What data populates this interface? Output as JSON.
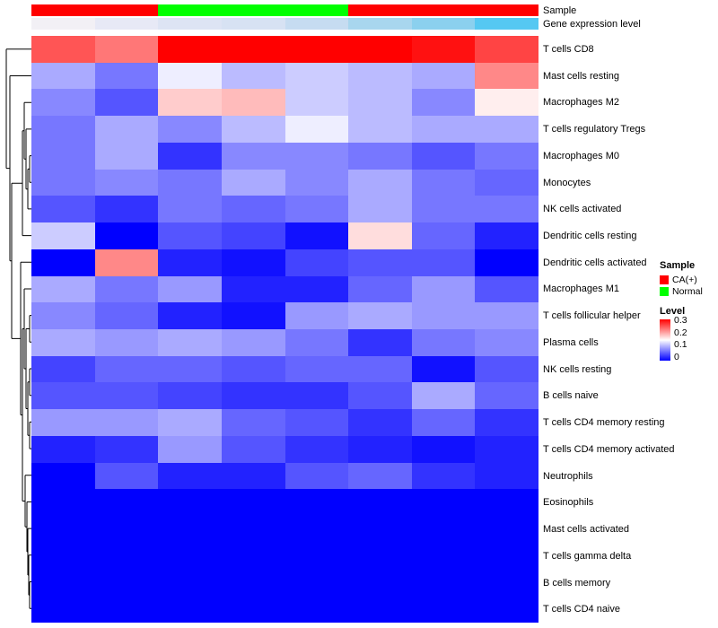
{
  "chart_data": {
    "type": "heatmap",
    "n_columns": 8,
    "colormap": {
      "min": 0,
      "mid": 0.15,
      "max": 0.3,
      "low": "#0000ff",
      "mid_color": "#ffffff",
      "high": "#ff0000"
    },
    "rows": [
      {
        "label": "T cells CD8",
        "values": [
          0.25,
          0.23,
          0.3,
          0.3,
          0.3,
          0.3,
          0.29,
          0.26
        ]
      },
      {
        "label": "Mast cells resting",
        "values": [
          0.1,
          0.07,
          0.14,
          0.11,
          0.12,
          0.11,
          0.1,
          0.22
        ]
      },
      {
        "label": "Macrophages M2",
        "values": [
          0.08,
          0.05,
          0.18,
          0.19,
          0.12,
          0.11,
          0.08,
          0.16
        ]
      },
      {
        "label": "T cells regulatory  Tregs",
        "values": [
          0.07,
          0.1,
          0.08,
          0.11,
          0.14,
          0.11,
          0.1,
          0.1
        ]
      },
      {
        "label": "Macrophages M0",
        "values": [
          0.07,
          0.1,
          0.03,
          0.08,
          0.08,
          0.07,
          0.05,
          0.07
        ]
      },
      {
        "label": "Monocytes",
        "values": [
          0.07,
          0.08,
          0.07,
          0.1,
          0.08,
          0.1,
          0.07,
          0.06
        ]
      },
      {
        "label": "NK cells activated",
        "values": [
          0.05,
          0.03,
          0.07,
          0.06,
          0.07,
          0.1,
          0.07,
          0.07
        ]
      },
      {
        "label": "Dendritic cells resting",
        "values": [
          0.12,
          0.0,
          0.05,
          0.04,
          0.01,
          0.17,
          0.06,
          0.02
        ]
      },
      {
        "label": "Dendritic cells activated",
        "values": [
          0.0,
          0.22,
          0.02,
          0.01,
          0.04,
          0.05,
          0.05,
          0.0
        ]
      },
      {
        "label": "Macrophages M1",
        "values": [
          0.1,
          0.07,
          0.09,
          0.02,
          0.02,
          0.06,
          0.09,
          0.05
        ]
      },
      {
        "label": "T cells follicular helper",
        "values": [
          0.08,
          0.06,
          0.02,
          0.01,
          0.09,
          0.1,
          0.09,
          0.09
        ]
      },
      {
        "label": "Plasma cells",
        "values": [
          0.1,
          0.09,
          0.1,
          0.09,
          0.07,
          0.03,
          0.07,
          0.08
        ]
      },
      {
        "label": "NK cells resting",
        "values": [
          0.04,
          0.06,
          0.06,
          0.05,
          0.06,
          0.06,
          0.01,
          0.05
        ]
      },
      {
        "label": "B cells naive",
        "values": [
          0.05,
          0.05,
          0.04,
          0.03,
          0.03,
          0.05,
          0.1,
          0.06
        ]
      },
      {
        "label": "T cells CD4 memory resting",
        "values": [
          0.09,
          0.09,
          0.1,
          0.06,
          0.05,
          0.03,
          0.06,
          0.03
        ]
      },
      {
        "label": "T cells CD4 memory activated",
        "values": [
          0.02,
          0.03,
          0.09,
          0.05,
          0.03,
          0.02,
          0.01,
          0.02
        ]
      },
      {
        "label": "Neutrophils",
        "values": [
          0.0,
          0.05,
          0.02,
          0.02,
          0.05,
          0.06,
          0.03,
          0.02
        ]
      },
      {
        "label": "Eosinophils",
        "values": [
          0,
          0,
          0,
          0,
          0,
          0,
          0,
          0
        ]
      },
      {
        "label": "Mast cells activated",
        "values": [
          0,
          0,
          0,
          0,
          0,
          0,
          0,
          0
        ]
      },
      {
        "label": "T cells gamma delta",
        "values": [
          0,
          0,
          0,
          0,
          0,
          0,
          0,
          0
        ]
      },
      {
        "label": "B cells memory",
        "values": [
          0,
          0,
          0,
          0,
          0,
          0,
          0,
          0
        ]
      },
      {
        "label": "T cells CD4 naive",
        "values": [
          0,
          0,
          0,
          0,
          0,
          0,
          0,
          0
        ]
      }
    ],
    "column_annotations": {
      "sample": {
        "label": "Sample",
        "values": [
          "CA(+)",
          "CA(+)",
          "Normal",
          "Normal",
          "Normal",
          "CA(+)",
          "CA(+)",
          "CA(+)"
        ],
        "colors": {
          "CA(+)": "#ff0000",
          "Normal": "#00ff00"
        }
      },
      "gene_expression": {
        "label": "Gene expression level",
        "colors": [
          "#f2f0f5",
          "#e7e9f6",
          "#dde4f4",
          "#d7e2f3",
          "#c6dcf1",
          "#a8d6ee",
          "#8bd0ee",
          "#55c8f2"
        ]
      }
    },
    "legend": {
      "sample": {
        "title": "Sample",
        "items": [
          {
            "label": "CA(+)",
            "color": "#ff0000"
          },
          {
            "label": "Normal",
            "color": "#00ff00"
          }
        ]
      },
      "level": {
        "title": "Level",
        "ticks": [
          "0.3",
          "0.2",
          "0.1",
          "0"
        ]
      }
    },
    "dendrogram_segments": [
      [
        34,
        608.5,
        32,
        608.5
      ],
      [
        34,
        638.2,
        32,
        638.2
      ],
      [
        32,
        608.5,
        32,
        638.2
      ],
      [
        32,
        623.3,
        31,
        623.3
      ],
      [
        34,
        578.8,
        31,
        578.8
      ],
      [
        31,
        578.8,
        31,
        623.3
      ],
      [
        31,
        601.0,
        30,
        601.0
      ],
      [
        34,
        549.1,
        30,
        549.1
      ],
      [
        30,
        549.1,
        30,
        601.0
      ],
      [
        30,
        575.0,
        29,
        575.0
      ],
      [
        34,
        519.4,
        29,
        519.4
      ],
      [
        29,
        519.4,
        29,
        575.0
      ],
      [
        29,
        547.2,
        27,
        547.2
      ],
      [
        34,
        489.7,
        27,
        489.7
      ],
      [
        27,
        489.7,
        27,
        547.2
      ],
      [
        34,
        430.4,
        32,
        430.4
      ],
      [
        34,
        460.1,
        32,
        460.1
      ],
      [
        32,
        430.4,
        32,
        460.1
      ],
      [
        34,
        371.0,
        32,
        371.0
      ],
      [
        34,
        400.7,
        32,
        400.7
      ],
      [
        32,
        371.0,
        32,
        400.7
      ],
      [
        32,
        385.8,
        30,
        385.8
      ],
      [
        32,
        445.2,
        30,
        445.2
      ],
      [
        30,
        385.8,
        30,
        445.2
      ],
      [
        34,
        311.6,
        32,
        311.6
      ],
      [
        34,
        341.3,
        32,
        341.3
      ],
      [
        32,
        311.6,
        32,
        341.3
      ],
      [
        32,
        326.5,
        28,
        326.5
      ],
      [
        30,
        415.5,
        28,
        415.5
      ],
      [
        28,
        326.5,
        28,
        415.5
      ],
      [
        34,
        282.0,
        26,
        282.0
      ],
      [
        28,
        371.0,
        26,
        371.0
      ],
      [
        26,
        282.0,
        26,
        371.0
      ],
      [
        26,
        326.5,
        24,
        326.5
      ],
      [
        27,
        518.5,
        24,
        518.5
      ],
      [
        24,
        326.5,
        24,
        518.5
      ],
      [
        34,
        252.3,
        22,
        252.3
      ],
      [
        24,
        422.5,
        22,
        422.5
      ],
      [
        22,
        252.3,
        22,
        422.5
      ],
      [
        34,
        133.6,
        32,
        133.6
      ],
      [
        34,
        163.2,
        32,
        163.2
      ],
      [
        32,
        133.6,
        32,
        163.2
      ],
      [
        32,
        148.4,
        30,
        148.4
      ],
      [
        34,
        192.9,
        30,
        192.9
      ],
      [
        30,
        148.4,
        30,
        192.9
      ],
      [
        34,
        103.9,
        28,
        103.9
      ],
      [
        30,
        170.7,
        28,
        170.7
      ],
      [
        28,
        103.9,
        28,
        170.7
      ],
      [
        34,
        74.2,
        26,
        74.2
      ],
      [
        28,
        137.3,
        26,
        137.3
      ],
      [
        26,
        74.2,
        26,
        137.3
      ],
      [
        26,
        105.8,
        24,
        105.8
      ],
      [
        34,
        222.6,
        24,
        222.6
      ],
      [
        24,
        105.8,
        24,
        222.6
      ],
      [
        24,
        164.2,
        12,
        164.2
      ],
      [
        22,
        337.4,
        12,
        337.4
      ],
      [
        12,
        164.2,
        12,
        337.4
      ],
      [
        34,
        44.5,
        10,
        44.5
      ],
      [
        12,
        250.8,
        10,
        250.8
      ],
      [
        10,
        44.5,
        10,
        250.8
      ],
      [
        34,
        14.8,
        6,
        14.8
      ],
      [
        10,
        147.6,
        6,
        147.6
      ],
      [
        6,
        14.8,
        6,
        147.6
      ]
    ]
  }
}
